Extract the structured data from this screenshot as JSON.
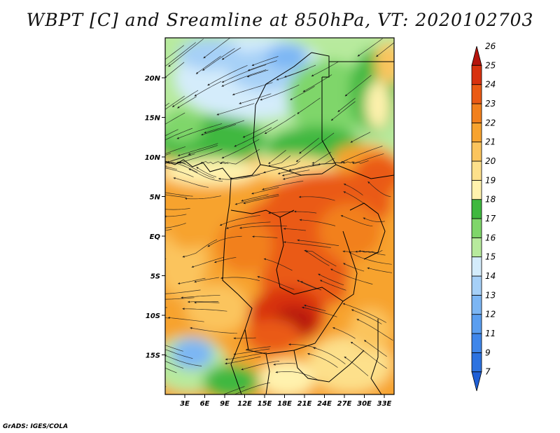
{
  "title": "WBPT [C] and Sreamline at 850hPa, VT: 2020102703",
  "credit": "GrADS: IGES/COLA",
  "map": {
    "longitude_labels": [
      "3E",
      "6E",
      "9E",
      "12E",
      "15E",
      "18E",
      "21E",
      "24E",
      "27E",
      "30E",
      "33E"
    ],
    "latitude_labels": [
      "20N",
      "15N",
      "10N",
      "5N",
      "EQ",
      "5S",
      "10S",
      "15S"
    ]
  },
  "colorbar": {
    "levels": [
      {
        "label": "7",
        "color": "#1f5fd6"
      },
      {
        "label": "9",
        "color": "#2c72e0"
      },
      {
        "label": "11",
        "color": "#3f86ea"
      },
      {
        "label": "12",
        "color": "#5a9ef0"
      },
      {
        "label": "13",
        "color": "#7cb6f4"
      },
      {
        "label": "14",
        "color": "#a6d0f7"
      },
      {
        "label": "15",
        "color": "#d4ecfb"
      },
      {
        "label": "16",
        "color": "#b7ea9d"
      },
      {
        "label": "17",
        "color": "#7fd66a"
      },
      {
        "label": "18",
        "color": "#3fb83f"
      },
      {
        "label": "19",
        "color": "#fff2ad"
      },
      {
        "label": "20",
        "color": "#fde08b"
      },
      {
        "label": "21",
        "color": "#fbc45d"
      },
      {
        "label": "22",
        "color": "#f7a32f"
      },
      {
        "label": "23",
        "color": "#f2801c"
      },
      {
        "label": "24",
        "color": "#ea5a14"
      },
      {
        "label": "25",
        "color": "#d8320f"
      },
      {
        "label": "26",
        "color": "#b5140c"
      }
    ]
  }
}
